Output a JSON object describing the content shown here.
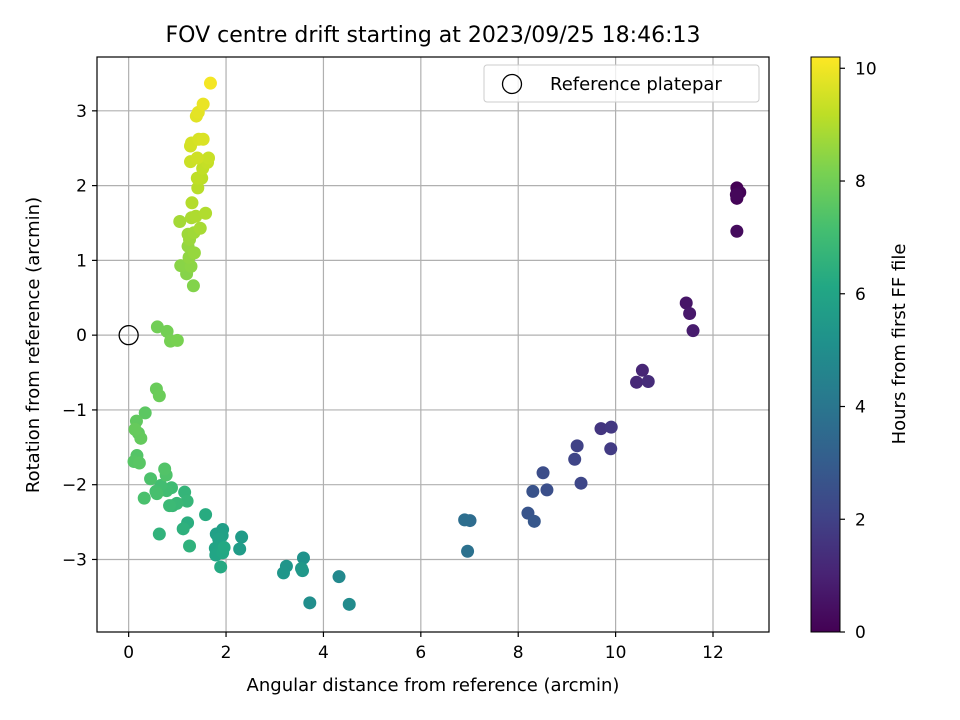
{
  "chart_data": {
    "type": "scatter",
    "title": "FOV centre drift starting at 2023/09/25 18:46:13",
    "xlabel": "Angular distance from reference (arcmin)",
    "ylabel": "Rotation from reference (arcmin)",
    "xlim": [
      -0.65,
      13.15
    ],
    "ylim": [
      -3.97,
      3.72
    ],
    "xticks": [
      0,
      2,
      4,
      6,
      8,
      10,
      12
    ],
    "yticks": [
      -3,
      -2,
      -1,
      0,
      1,
      2,
      3
    ],
    "grid": true,
    "legend": {
      "position": "top-right",
      "entries": [
        "Reference platepar"
      ]
    },
    "reference_point": {
      "x": 0,
      "y": 0
    },
    "colorbar": {
      "label": "Hours from first FF file",
      "colormap": "viridis",
      "range": [
        0,
        10.2
      ],
      "ticks": [
        0,
        2,
        4,
        6,
        8,
        10
      ]
    },
    "points": [
      [
        12.49,
        1.97,
        0.0
      ],
      [
        12.55,
        1.91,
        0.1
      ],
      [
        12.49,
        1.83,
        0.1
      ],
      [
        12.48,
        1.88,
        0.2
      ],
      [
        12.49,
        1.39,
        0.3
      ],
      [
        11.45,
        0.43,
        0.6
      ],
      [
        11.52,
        0.29,
        0.7
      ],
      [
        11.59,
        0.06,
        0.8
      ],
      [
        10.55,
        -0.47,
        1.1
      ],
      [
        10.43,
        -0.63,
        1.2
      ],
      [
        10.67,
        -0.62,
        1.3
      ],
      [
        9.7,
        -1.25,
        1.6
      ],
      [
        9.91,
        -1.23,
        1.7
      ],
      [
        9.9,
        -1.52,
        1.8
      ],
      [
        9.21,
        -1.48,
        2.0
      ],
      [
        9.16,
        -1.66,
        2.1
      ],
      [
        9.29,
        -1.98,
        2.2
      ],
      [
        8.51,
        -1.84,
        2.4
      ],
      [
        8.59,
        -2.07,
        2.5
      ],
      [
        8.3,
        -2.09,
        2.6
      ],
      [
        8.2,
        -2.38,
        2.7
      ],
      [
        8.33,
        -2.49,
        2.8
      ],
      [
        7.01,
        -2.48,
        3.6
      ],
      [
        6.9,
        -2.47,
        3.7
      ],
      [
        6.96,
        -2.89,
        3.8
      ],
      [
        4.32,
        -3.23,
        4.8
      ],
      [
        4.53,
        -3.6,
        4.9
      ],
      [
        3.72,
        -3.58,
        5.0
      ],
      [
        3.59,
        -2.98,
        5.2
      ],
      [
        3.24,
        -3.09,
        5.3
      ],
      [
        3.18,
        -3.18,
        5.35
      ],
      [
        3.57,
        -3.15,
        5.4
      ],
      [
        3.55,
        -3.12,
        5.45
      ],
      [
        2.32,
        -2.7,
        5.6
      ],
      [
        2.28,
        -2.86,
        5.65
      ],
      [
        1.93,
        -2.6,
        5.7
      ],
      [
        1.8,
        -2.66,
        5.8
      ],
      [
        1.92,
        -2.68,
        5.85
      ],
      [
        1.85,
        -2.73,
        5.9
      ],
      [
        1.78,
        -2.85,
        5.95
      ],
      [
        1.9,
        -2.87,
        6.0
      ],
      [
        1.79,
        -2.94,
        6.05
      ],
      [
        1.93,
        -2.91,
        6.1
      ],
      [
        1.96,
        -2.84,
        6.15
      ],
      [
        1.89,
        -3.1,
        6.2
      ],
      [
        1.58,
        -2.4,
        6.3
      ],
      [
        1.21,
        -2.51,
        6.4
      ],
      [
        1.12,
        -2.59,
        6.5
      ],
      [
        1.25,
        -2.82,
        6.55
      ],
      [
        0.63,
        -2.66,
        6.6
      ],
      [
        1.15,
        -2.1,
        6.7
      ],
      [
        1.2,
        -2.22,
        6.75
      ],
      [
        0.9,
        -2.28,
        6.8
      ],
      [
        0.99,
        -2.25,
        6.85
      ],
      [
        0.84,
        -2.28,
        6.9
      ],
      [
        0.88,
        -2.04,
        7.0
      ],
      [
        0.78,
        -2.08,
        7.05
      ],
      [
        0.66,
        -2.01,
        7.1
      ],
      [
        0.56,
        -2.09,
        7.15
      ],
      [
        0.58,
        -2.12,
        7.2
      ],
      [
        0.32,
        -2.18,
        7.25
      ],
      [
        0.45,
        -1.92,
        7.3
      ],
      [
        0.77,
        -1.87,
        7.35
      ],
      [
        0.74,
        -1.79,
        7.4
      ],
      [
        0.17,
        -1.61,
        7.45
      ],
      [
        0.11,
        -1.69,
        7.5
      ],
      [
        0.22,
        -1.71,
        7.55
      ],
      [
        0.34,
        -1.04,
        7.6
      ],
      [
        0.2,
        -1.31,
        7.65
      ],
      [
        0.16,
        -1.15,
        7.7
      ],
      [
        0.25,
        -1.38,
        7.75
      ],
      [
        0.13,
        -1.26,
        7.8
      ],
      [
        0.57,
        -0.72,
        7.85
      ],
      [
        0.63,
        -0.81,
        7.9
      ],
      [
        0.59,
        0.11,
        8.0
      ],
      [
        0.79,
        0.05,
        8.05
      ],
      [
        0.86,
        -0.08,
        8.1
      ],
      [
        1.0,
        -0.07,
        8.15
      ],
      [
        1.33,
        0.66,
        8.3
      ],
      [
        1.19,
        0.82,
        8.35
      ],
      [
        1.07,
        0.93,
        8.4
      ],
      [
        1.28,
        0.92,
        8.45
      ],
      [
        1.24,
        1.04,
        8.5
      ],
      [
        1.22,
        1.19,
        8.55
      ],
      [
        1.35,
        1.1,
        8.6
      ],
      [
        1.25,
        1.28,
        8.65
      ],
      [
        1.22,
        1.35,
        8.7
      ],
      [
        1.34,
        1.37,
        8.75
      ],
      [
        1.05,
        1.52,
        8.8
      ],
      [
        1.47,
        1.43,
        8.85
      ],
      [
        1.29,
        1.57,
        8.9
      ],
      [
        1.38,
        1.59,
        8.95
      ],
      [
        1.58,
        1.63,
        9.0
      ],
      [
        1.3,
        1.77,
        9.05
      ],
      [
        1.42,
        1.97,
        9.1
      ],
      [
        1.5,
        2.1,
        9.15
      ],
      [
        1.41,
        2.1,
        9.2
      ],
      [
        1.52,
        2.23,
        9.25
      ],
      [
        1.62,
        2.31,
        9.3
      ],
      [
        1.64,
        2.37,
        9.35
      ],
      [
        1.27,
        2.32,
        9.4
      ],
      [
        1.41,
        2.37,
        9.45
      ],
      [
        1.27,
        2.53,
        9.5
      ],
      [
        1.29,
        2.57,
        9.55
      ],
      [
        1.44,
        2.62,
        9.6
      ],
      [
        1.53,
        2.62,
        9.65
      ],
      [
        1.39,
        2.93,
        9.75
      ],
      [
        1.43,
        2.98,
        9.8
      ],
      [
        1.53,
        3.09,
        9.9
      ],
      [
        1.68,
        3.37,
        10.05
      ]
    ]
  }
}
